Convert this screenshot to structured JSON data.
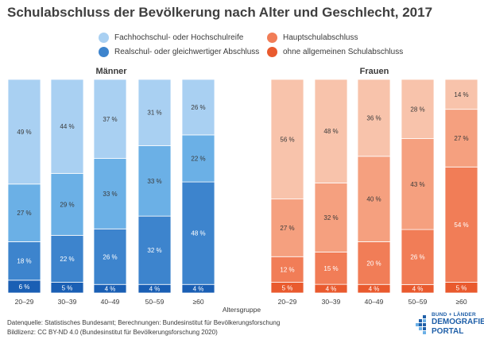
{
  "title": "Schulabschluss der Bevölkerung nach Alter und Geschlecht, 2017",
  "legend": {
    "maenner_fach": "Fachhochschul- oder Hochschulreife",
    "maenner_real": "Realschul- oder gleichwertiger Abschluss",
    "frauen_haupt": "Hauptschulabschluss",
    "frauen_ohne": "ohne allgemeinen Schulabschluss"
  },
  "colors": {
    "men": [
      "#1a5fb4",
      "#3d84cd",
      "#6bb0e6",
      "#a9d0f2"
    ],
    "women": [
      "#e95a2e",
      "#f17d57",
      "#f5a07f",
      "#f8c3ab"
    ]
  },
  "chart_data": {
    "type": "bar",
    "stacked": true,
    "xlabel": "Altersgruppe",
    "categories": [
      "20–29",
      "30–39",
      "40–49",
      "50–59",
      "≥60"
    ],
    "series_names": [
      "ohne allgemeinen Schulabschluss",
      "Hauptschulabschluss",
      "Realschul- oder gleichwertiger Abschluss",
      "Fachhochschul- oder Hochschulreife"
    ],
    "panels": [
      {
        "title": "Männer",
        "values": [
          [
            6,
            18,
            27,
            49
          ],
          [
            5,
            22,
            29,
            44
          ],
          [
            4,
            26,
            33,
            37
          ],
          [
            4,
            32,
            33,
            31
          ],
          [
            4,
            48,
            22,
            26
          ]
        ]
      },
      {
        "title": "Frauen",
        "values": [
          [
            5,
            12,
            27,
            56
          ],
          [
            4,
            15,
            32,
            48
          ],
          [
            4,
            20,
            40,
            36
          ],
          [
            4,
            26,
            43,
            28
          ],
          [
            5,
            54,
            27,
            14
          ]
        ]
      }
    ],
    "value_suffix": " %"
  },
  "footer": {
    "line1": "Datenquelle: Statistisches Bundesamt; Berechnungen: Bundesinstitut für Bevölkerungsforschung",
    "line2": "Bildlizenz: CC BY-ND 4.0 (Bundesinstitut für Bevölkerungsforschung 2020)"
  },
  "logo": {
    "top": "BUND + LÄNDER",
    "line1": "DEMOGRAFIE",
    "line2": "PORTAL"
  }
}
